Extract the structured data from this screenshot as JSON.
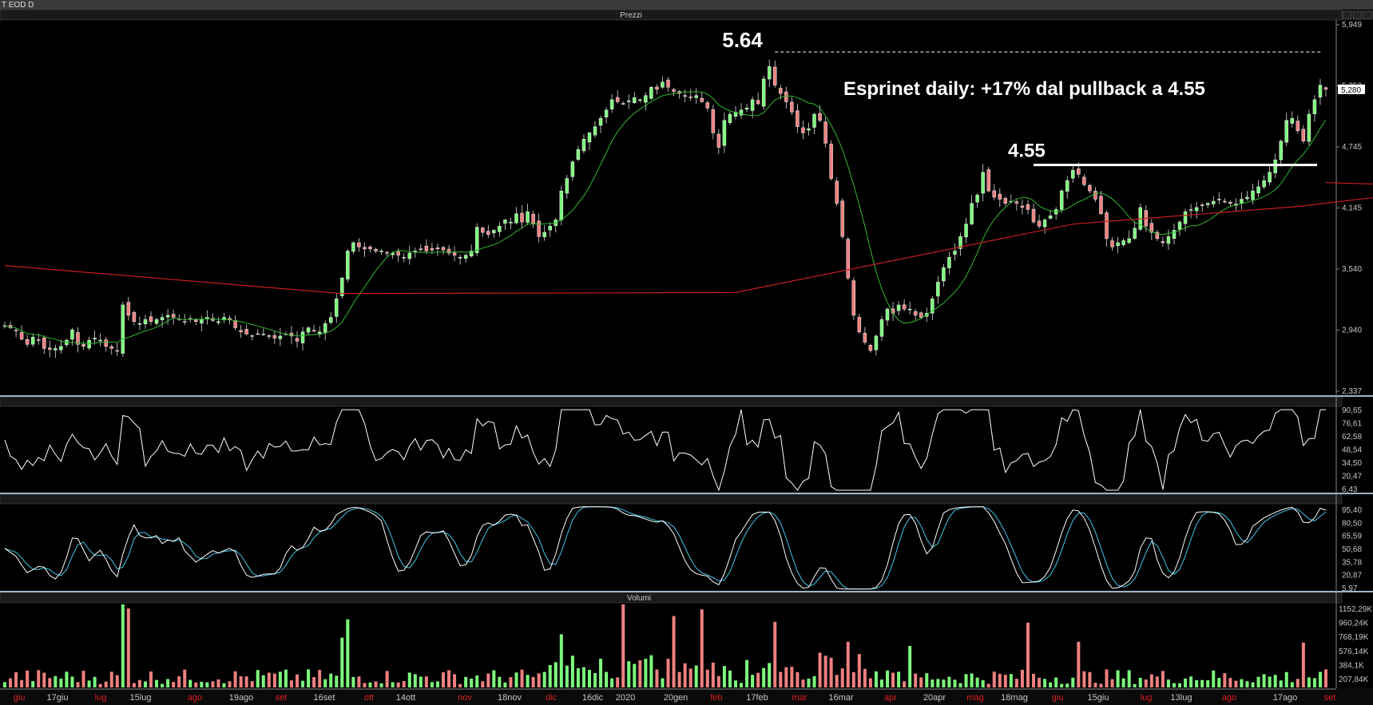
{
  "window": {
    "title": "T EOD D"
  },
  "panels": {
    "prices_title": "Prezzi",
    "rsi_title": "",
    "stoch_title": "",
    "volume_title": "Volumi"
  },
  "colors": {
    "background": "#000000",
    "up_candle": "#7CFC7C",
    "down_candle": "#F08080",
    "ma_short": "#2FB82F",
    "ma_long": "#C81E1E",
    "oscillator_main": "#FFFFFF",
    "stoch_signal": "#40C8E8",
    "annotation": "#FFFFFF",
    "axis_month_red": "#E02020",
    "axis_label": "#C8C8C8"
  },
  "chart_data": [
    {
      "type": "candlestick",
      "title": "Prezzi",
      "annotation_title": "Esprinet daily: +17% dal pullback a 4.55",
      "annotations": [
        {
          "label": "5.64",
          "value": 5.64,
          "style": "dashed",
          "x_from": "17feb"
        },
        {
          "label": "4.55",
          "value": 4.55,
          "style": "solid",
          "x_from": "20apr"
        }
      ],
      "last_price_label": "5,280",
      "y_ticks": [
        "5,949",
        "5,350",
        "4,745",
        "4,145",
        "3,540",
        "2,940",
        "2,337"
      ],
      "ylim": [
        2.337,
        5.949
      ],
      "series": [
        {
          "name": "",
          "kind": "ohlc",
          "values": [
            3.0,
            2.98,
            2.95,
            2.87,
            2.82,
            2.89,
            2.86,
            2.78,
            2.77,
            2.78,
            2.8,
            2.86,
            2.96,
            2.82,
            2.8,
            2.86,
            2.88,
            2.86,
            2.8,
            2.78,
            2.76,
            3.2,
            3.1,
            3.04,
            3.02,
            3.06,
            3.04,
            3.06,
            3.08,
            3.1,
            3.08,
            3.06,
            3.04,
            3.06,
            3.04,
            3.06,
            3.08,
            3.05,
            3.04,
            3.08,
            3.06,
            2.98,
            2.94,
            2.92,
            2.9,
            2.92,
            2.92,
            2.9,
            2.88,
            2.9,
            2.92,
            2.9,
            2.85,
            2.94,
            2.98,
            2.95,
            2.94,
            3.02,
            3.08,
            3.26,
            3.46,
            3.72,
            3.8,
            3.76,
            3.74,
            3.74,
            3.72,
            3.72,
            3.7,
            3.7,
            3.68,
            3.66,
            3.7,
            3.72,
            3.74,
            3.72,
            3.73,
            3.74,
            3.73,
            3.7,
            3.68,
            3.66,
            3.68,
            3.72,
            3.95,
            3.9,
            3.88,
            3.92,
            3.96,
            4.02,
            4.0,
            4.08,
            4.0,
            4.1,
            3.98,
            3.86,
            3.9,
            3.96,
            4.02,
            4.3,
            4.42,
            4.58,
            4.7,
            4.8,
            4.86,
            4.92,
            5.0,
            5.08,
            5.18,
            5.16,
            5.14,
            5.17,
            5.2,
            5.18,
            5.22,
            5.3,
            5.28,
            5.35,
            5.3,
            5.26,
            5.24,
            5.22,
            5.2,
            5.22,
            5.16,
            5.1,
            4.86,
            4.72,
            4.98,
            5.04,
            5.06,
            5.08,
            5.1,
            5.18,
            5.14,
            5.38,
            5.5,
            5.32,
            5.24,
            5.16,
            5.06,
            4.92,
            4.86,
            4.9,
            5.04,
            4.98,
            4.76,
            4.42,
            4.18,
            3.86,
            3.46,
            3.1,
            2.94,
            2.84,
            2.76,
            2.9,
            3.06,
            3.16,
            3.12,
            3.2,
            3.16,
            3.16,
            3.1,
            3.08,
            3.12,
            3.26,
            3.42,
            3.56,
            3.66,
            3.72,
            3.86,
            3.98,
            4.18,
            4.26,
            4.48,
            4.3,
            4.24,
            4.22,
            4.18,
            4.2,
            4.18,
            4.14,
            4.12,
            4.0,
            3.96,
            4.02,
            4.06,
            4.12,
            4.3,
            4.4,
            4.5,
            4.46,
            4.36,
            4.3,
            4.22,
            4.08,
            3.84,
            3.76,
            3.8,
            3.82,
            3.84,
            3.94,
            4.14,
            3.96,
            3.9,
            3.84,
            3.8,
            3.86,
            3.92,
            4.0,
            4.1,
            4.12,
            4.14,
            4.16,
            4.18,
            4.2,
            4.22,
            4.2,
            4.18,
            4.16,
            4.22,
            4.24,
            4.3,
            4.34,
            4.4,
            4.48,
            4.6,
            4.78,
            4.98,
            5.0,
            4.88,
            4.78,
            5.04,
            5.18,
            5.32,
            5.28
          ]
        },
        {
          "name": "",
          "kind": "moving_average_short",
          "values": []
        },
        {
          "name": "",
          "kind": "moving_average_long",
          "values": []
        }
      ]
    },
    {
      "type": "line",
      "title": "",
      "y_ticks": [
        "90,65",
        "76,61",
        "62,58",
        "48,54",
        "34,50",
        "20,47",
        "6,43"
      ],
      "ylim": [
        6.43,
        90.65
      ],
      "series": [
        {
          "name": "",
          "values": []
        }
      ]
    },
    {
      "type": "line",
      "title": "",
      "y_ticks": [
        "95,40",
        "80,50",
        "65,59",
        "50,68",
        "35,78",
        "20,87",
        "5,97"
      ],
      "ylim": [
        5.97,
        95.4
      ],
      "series": [
        {
          "name": "",
          "values": []
        },
        {
          "name": "",
          "values": []
        }
      ]
    },
    {
      "type": "bar",
      "title": "Volumi",
      "y_ticks": [
        "1152,29K",
        "960,24K",
        "768,19K",
        "576,14K",
        "384,1K",
        "207,84K"
      ],
      "ylim": [
        0,
        1152.29
      ],
      "series": [
        {
          "name": "",
          "values": []
        }
      ]
    }
  ],
  "x_axis": {
    "labels": [
      {
        "text": "giu",
        "red": true
      },
      {
        "text": "17giu",
        "red": false
      },
      {
        "text": "lug",
        "red": true
      },
      {
        "text": "15lug",
        "red": false
      },
      {
        "text": "ago",
        "red": true
      },
      {
        "text": "19ago",
        "red": false
      },
      {
        "text": "set",
        "red": true
      },
      {
        "text": "16set",
        "red": false
      },
      {
        "text": "ott",
        "red": true
      },
      {
        "text": "14ott",
        "red": false
      },
      {
        "text": "nov",
        "red": true
      },
      {
        "text": "18nov",
        "red": false
      },
      {
        "text": "dic",
        "red": true
      },
      {
        "text": "16dic",
        "red": false
      },
      {
        "text": "2020",
        "red": false
      },
      {
        "text": "20gen",
        "red": false
      },
      {
        "text": "feb",
        "red": true
      },
      {
        "text": "17feb",
        "red": false
      },
      {
        "text": "mar",
        "red": true
      },
      {
        "text": "16mar",
        "red": false
      },
      {
        "text": "apr",
        "red": true
      },
      {
        "text": "20apr",
        "red": false
      },
      {
        "text": "mag",
        "red": true
      },
      {
        "text": "18mag",
        "red": false
      },
      {
        "text": "giu",
        "red": true
      },
      {
        "text": "15giu",
        "red": false
      },
      {
        "text": "lug",
        "red": true
      },
      {
        "text": "13lug",
        "red": false
      },
      {
        "text": "ago",
        "red": true
      },
      {
        "text": "17ago",
        "red": false
      },
      {
        "text": "set",
        "red": true
      }
    ]
  }
}
